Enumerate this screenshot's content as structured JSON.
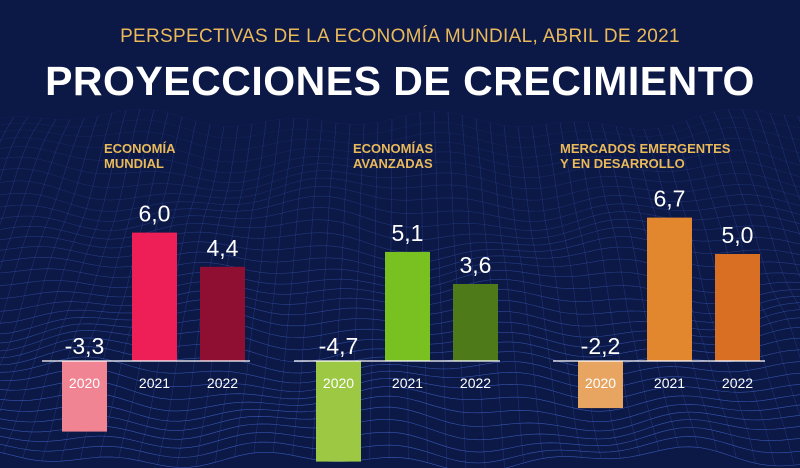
{
  "header": {
    "subtitle": "PERSPECTIVAS DE LA ECONOMÍA MUNDIAL, ABRIL DE 2021",
    "title": "PROYECCIONES DE CRECIMIENTO"
  },
  "chart_data": [
    {
      "type": "bar",
      "title_lines": [
        "ECONOMÍA",
        "MUNDIAL"
      ],
      "categories": [
        "2020",
        "2021",
        "2022"
      ],
      "values": [
        -3.3,
        6.0,
        4.4
      ],
      "labels": [
        "-3,3",
        "6,0",
        "4,4"
      ],
      "colors": [
        "#f08493",
        "#ee1e57",
        "#8e0f31"
      ]
    },
    {
      "type": "bar",
      "title_lines": [
        "ECONOMÍAS",
        "AVANZADAS"
      ],
      "categories": [
        "2020",
        "2021",
        "2022"
      ],
      "values": [
        -4.7,
        5.1,
        3.6
      ],
      "labels": [
        "-4,7",
        "5,1",
        "3,6"
      ],
      "colors": [
        "#9cc844",
        "#79c021",
        "#4e7a1a"
      ]
    },
    {
      "type": "bar",
      "title_lines": [
        "MERCADOS EMERGENTES",
        "Y EN DESARROLLO"
      ],
      "categories": [
        "2020",
        "2021",
        "2022"
      ],
      "values": [
        -2.2,
        6.7,
        5.0
      ],
      "labels": [
        "-2,2",
        "6,7",
        "5,0"
      ],
      "colors": [
        "#e7a561",
        "#e3872e",
        "#d96f22"
      ]
    }
  ]
}
